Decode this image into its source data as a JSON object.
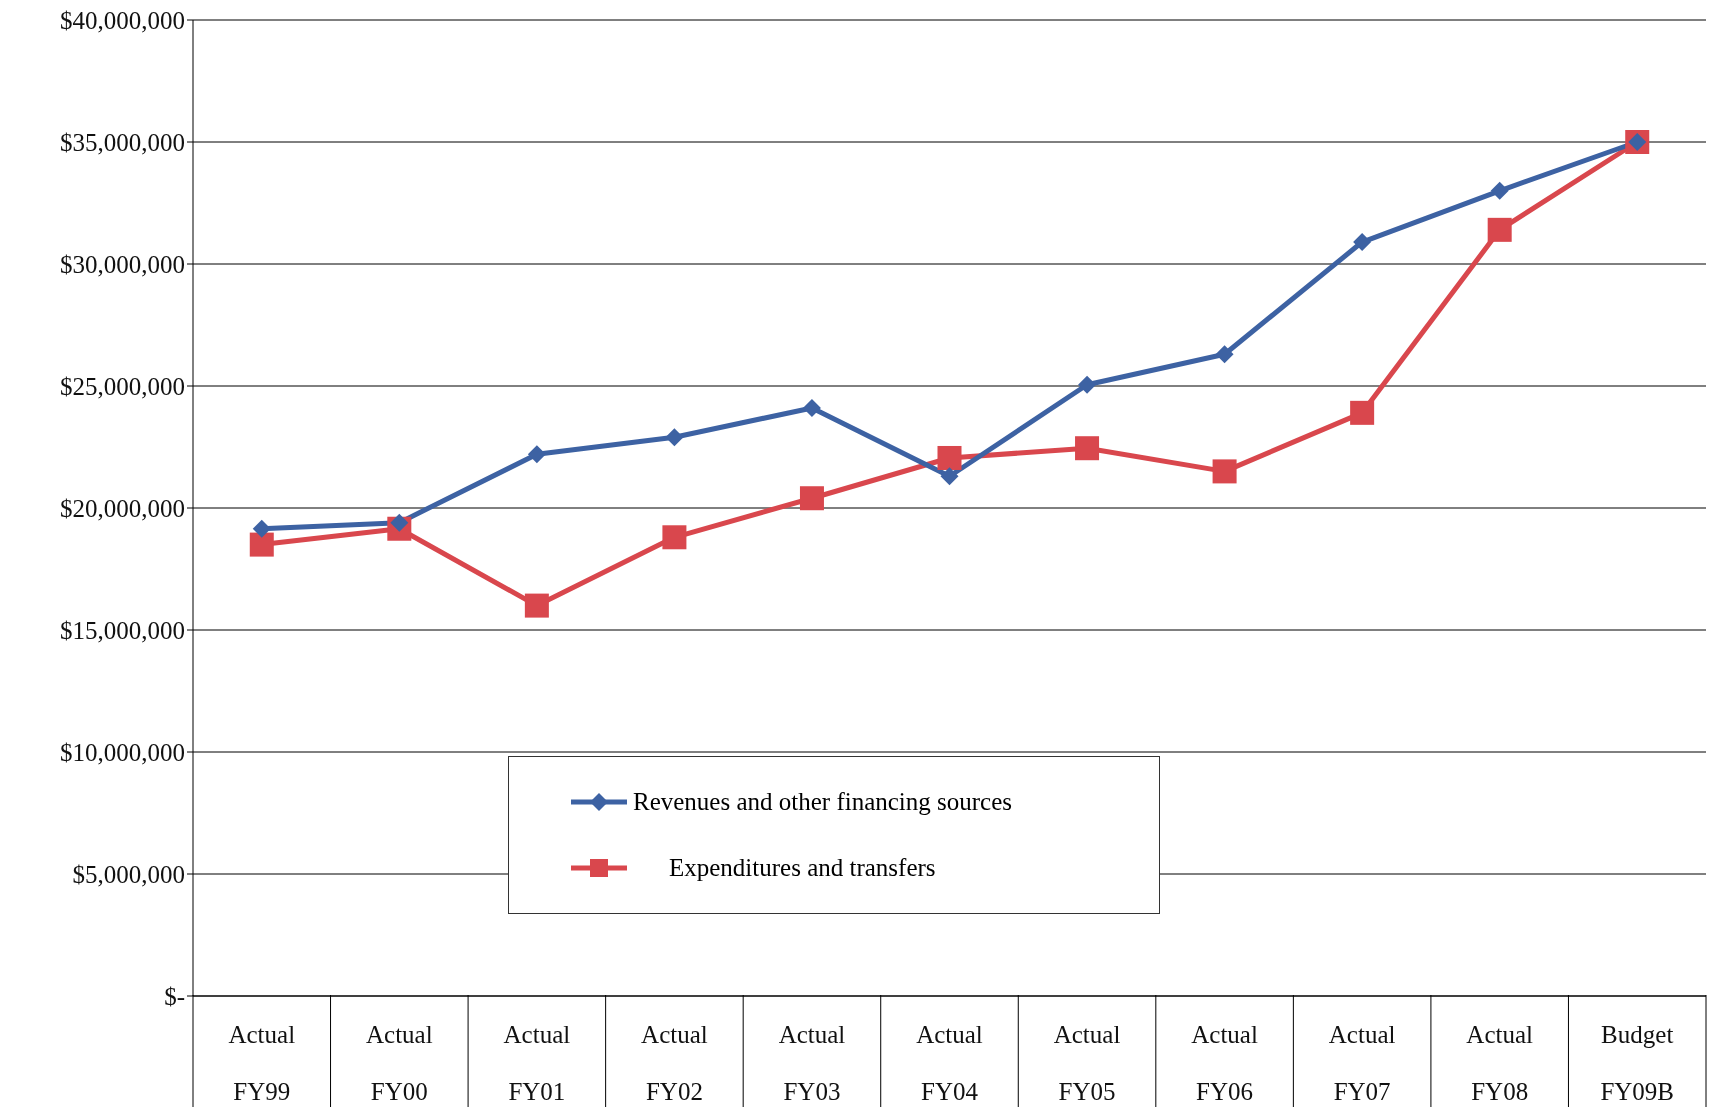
{
  "chart_data": {
    "type": "line",
    "categories": [
      "Actual FY99",
      "Actual FY00",
      "Actual FY01",
      "Actual FY02",
      "Actual FY03",
      "Actual FY04",
      "Actual FY05",
      "Actual FY06",
      "Actual FY07",
      "Actual FY08",
      "Budget FY09B"
    ],
    "series": [
      {
        "name": "Revenues and other financing sources",
        "color": "#3d62a3",
        "marker": "diamond",
        "values": [
          19150000,
          19400000,
          22200000,
          22900000,
          24100000,
          21300000,
          25050000,
          26300000,
          30900000,
          33000000,
          35000000
        ]
      },
      {
        "name": "Expenditures and transfers",
        "color": "#d9474d",
        "marker": "square",
        "values": [
          18500000,
          19150000,
          16000000,
          18800000,
          20400000,
          22050000,
          22450000,
          21500000,
          23900000,
          31400000,
          35000000
        ]
      }
    ],
    "ylim": [
      0,
      40000000
    ],
    "yticks": [
      {
        "value": 0,
        "label": "$-"
      },
      {
        "value": 5000000,
        "label": "$5,000,000"
      },
      {
        "value": 10000000,
        "label": "$10,000,000"
      },
      {
        "value": 15000000,
        "label": "$15,000,000"
      },
      {
        "value": 20000000,
        "label": "$20,000,000"
      },
      {
        "value": 25000000,
        "label": "$25,000,000"
      },
      {
        "value": 30000000,
        "label": "$30,000,000"
      },
      {
        "value": 35000000,
        "label": "$35,000,000"
      },
      {
        "value": 40000000,
        "label": "$40,000,000"
      }
    ],
    "grid": "y",
    "legend": "bottom",
    "line_style": "solid"
  }
}
